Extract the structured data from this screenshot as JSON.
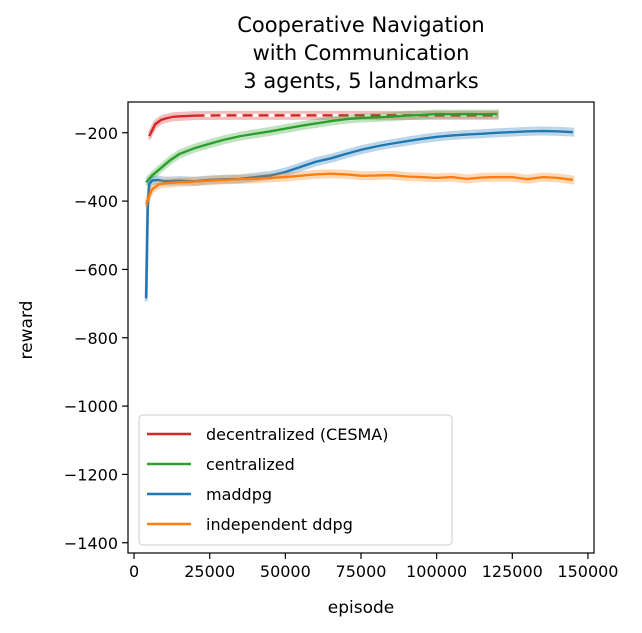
{
  "chart_data": {
    "type": "line",
    "title": [
      "Cooperative Navigation",
      "with Communication",
      "3 agents, 5 landmarks"
    ],
    "xlabel": "episode",
    "ylabel": "reward",
    "xlim": [
      -2000,
      152000
    ],
    "ylim": [
      -1430,
      -110
    ],
    "xticks": [
      0,
      25000,
      50000,
      75000,
      100000,
      125000,
      150000
    ],
    "yticks": [
      -1400,
      -1200,
      -1000,
      -800,
      -600,
      -400,
      -200
    ],
    "grid": false,
    "legend": "lower-left",
    "series": [
      {
        "name": "decentralized (CESMA)",
        "color": "#d62728",
        "style": "solid-then-dashed",
        "x": [
          5000,
          7000,
          9000,
          11000,
          13000,
          15000,
          20000,
          30000,
          40000,
          60000,
          80000,
          100000,
          120000
        ],
        "y": [
          -210,
          -175,
          -162,
          -157,
          -153,
          -152,
          -150,
          -149,
          -149,
          -149,
          -149,
          -149,
          -149
        ]
      },
      {
        "name": "centralized",
        "color": "#2ca02c",
        "style": "solid",
        "x": [
          4000,
          6000,
          8000,
          10000,
          12000,
          15000,
          20000,
          25000,
          30000,
          35000,
          40000,
          45000,
          50000,
          55000,
          60000,
          65000,
          70000,
          75000,
          80000,
          85000,
          90000,
          95000,
          100000,
          105000,
          110000,
          115000,
          120000
        ],
        "y": [
          -345,
          -325,
          -310,
          -295,
          -280,
          -262,
          -245,
          -232,
          -220,
          -210,
          -203,
          -196,
          -188,
          -180,
          -173,
          -166,
          -160,
          -157,
          -155,
          -153,
          -150,
          -148,
          -145,
          -146,
          -145,
          -146,
          -145
        ]
      },
      {
        "name": "maddpg",
        "color": "#1f77b4",
        "style": "solid",
        "x": [
          4000,
          4500,
          5000,
          6000,
          8000,
          10000,
          15000,
          20000,
          25000,
          30000,
          35000,
          40000,
          45000,
          50000,
          55000,
          60000,
          65000,
          70000,
          75000,
          80000,
          85000,
          90000,
          95000,
          100000,
          105000,
          110000,
          115000,
          120000,
          125000,
          130000,
          135000,
          140000,
          145000
        ],
        "y": [
          -685,
          -420,
          -350,
          -340,
          -338,
          -342,
          -340,
          -342,
          -338,
          -336,
          -335,
          -330,
          -325,
          -315,
          -300,
          -285,
          -275,
          -262,
          -250,
          -240,
          -232,
          -225,
          -218,
          -212,
          -208,
          -205,
          -203,
          -200,
          -198,
          -196,
          -195,
          -196,
          -198
        ]
      },
      {
        "name": "independent ddpg",
        "color": "#ff7f0e",
        "style": "solid",
        "x": [
          4000,
          5000,
          6000,
          8000,
          10000,
          15000,
          20000,
          25000,
          30000,
          35000,
          40000,
          45000,
          50000,
          55000,
          60000,
          65000,
          70000,
          75000,
          80000,
          85000,
          90000,
          95000,
          100000,
          105000,
          110000,
          115000,
          120000,
          125000,
          130000,
          135000,
          140000,
          145000
        ],
        "y": [
          -410,
          -385,
          -365,
          -352,
          -348,
          -345,
          -343,
          -340,
          -338,
          -336,
          -335,
          -332,
          -330,
          -326,
          -322,
          -320,
          -322,
          -326,
          -325,
          -324,
          -328,
          -330,
          -332,
          -330,
          -335,
          -331,
          -330,
          -330,
          -336,
          -330,
          -332,
          -338
        ]
      }
    ]
  }
}
